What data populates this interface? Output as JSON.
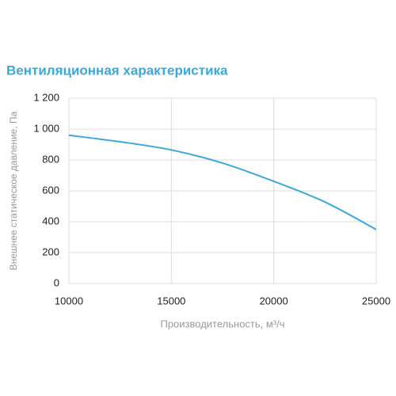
{
  "chart_data": {
    "type": "line",
    "title": "Вентиляционная характеристика",
    "x_label": "Производительность, м³/ч",
    "y_label": "Внешнее статическое давление, Па",
    "x": [
      10000,
      12500,
      15000,
      17500,
      20000,
      22500,
      25000
    ],
    "series": [
      {
        "color": "#3ba8dc",
        "values": [
          960,
          918,
          865,
          780,
          662,
          528,
          350
        ]
      }
    ],
    "xlim": [
      10000,
      25000
    ],
    "xticks": [
      10000,
      15000,
      20000,
      25000
    ],
    "ylim": [
      0,
      1200
    ],
    "yticks": [
      0,
      200,
      400,
      600,
      800,
      {
        "value": 1000,
        "label": "1 000"
      },
      {
        "value": 1200,
        "label": "1 200"
      }
    ],
    "grid": true
  }
}
